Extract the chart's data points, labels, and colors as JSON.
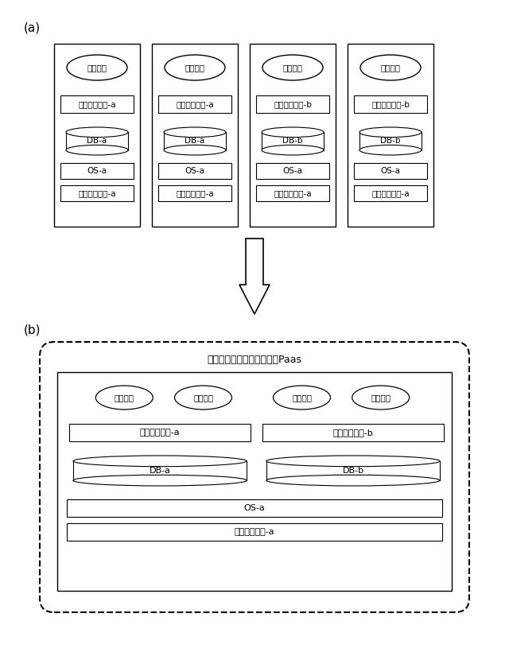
{
  "title_a": "(a)",
  "title_b": "(b)",
  "bg_color": "#ffffff",
  "box_color": "#000000",
  "arrow_color": "#000000",
  "tenant_label": "テナント",
  "middleware_a": "ミドルウェア-a",
  "middleware_b": "ミドルウェア-b",
  "db_a": "DB-a",
  "db_b": "DB-b",
  "os_a": "OS-a",
  "hardware_a": "ハードウェア-a",
  "paas_label": "マルチテナントネイティブPaas",
  "columns_a": [
    {
      "middleware": "ミドルウェア-a",
      "db": "DB-a",
      "os": "OS-a",
      "hw": "ハードウェア-a"
    },
    {
      "middleware": "ミドルウェア-a",
      "db": "DB-a",
      "os": "OS-a",
      "hw": "ハードウェア-a"
    },
    {
      "middleware": "ミドルウェア-b",
      "db": "DB-b",
      "os": "OS-a",
      "hw": "ハードウェア-a"
    },
    {
      "middleware": "ミドルウェア-b",
      "db": "DB-b",
      "os": "OS-a",
      "hw": "ハードウェア-a"
    }
  ]
}
